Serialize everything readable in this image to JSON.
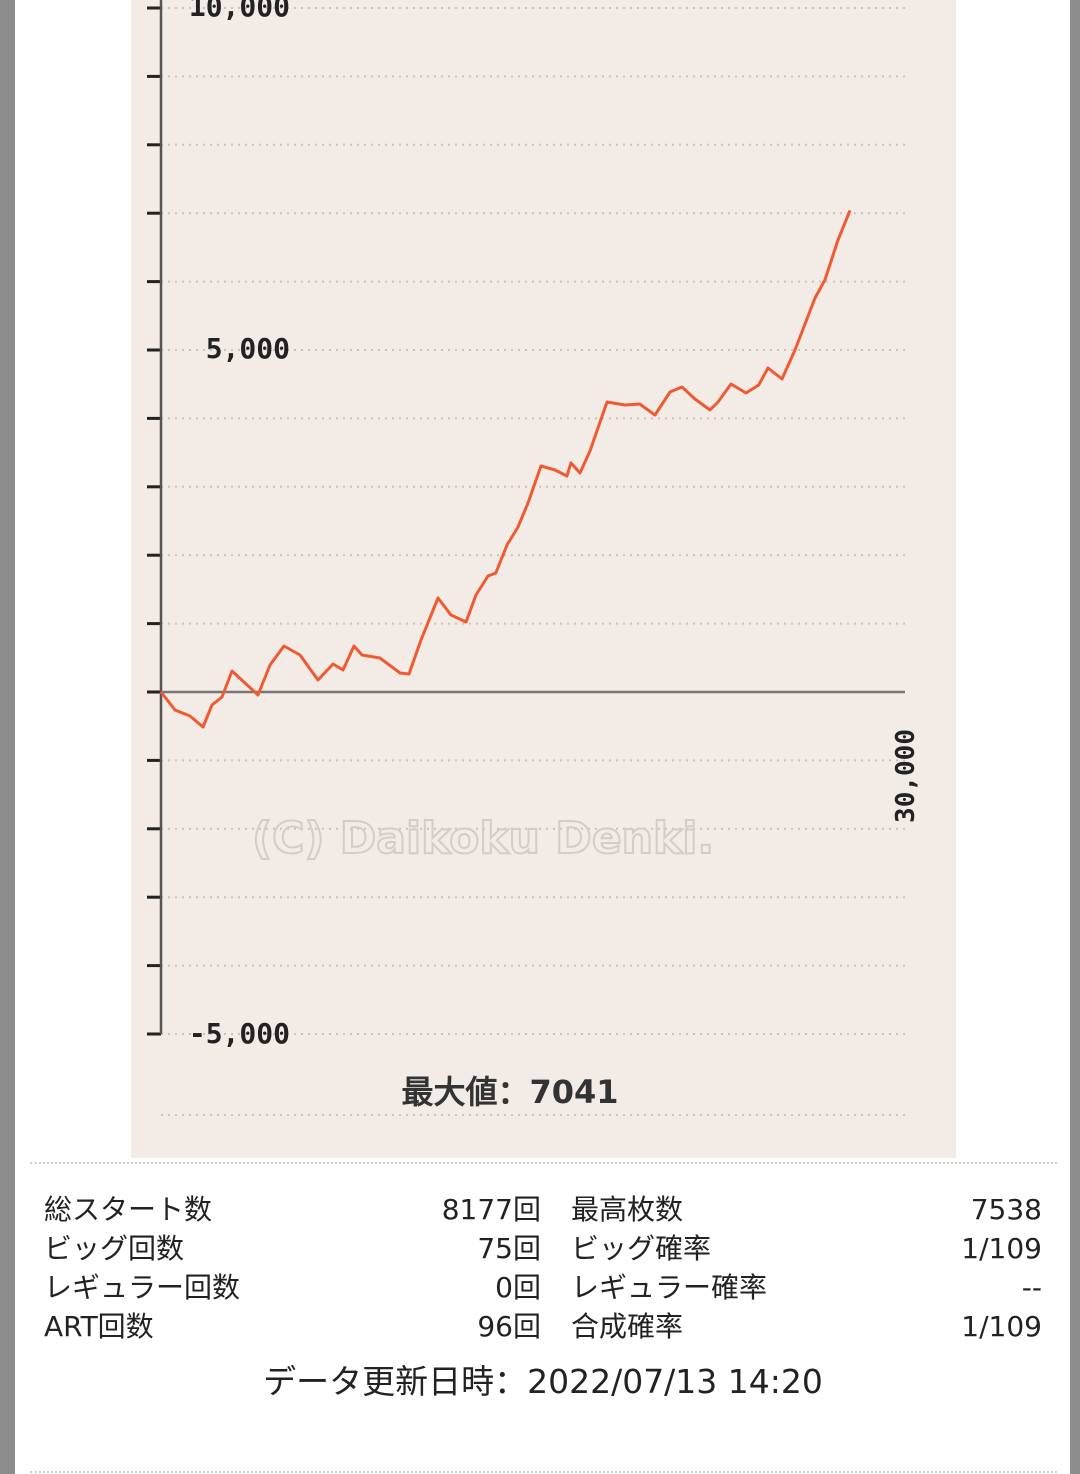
{
  "chart_data": {
    "type": "line",
    "title": "",
    "xlabel": "",
    "ylabel": "",
    "xlim": [
      0,
      30000
    ],
    "ylim": [
      -5000,
      10000
    ],
    "grid": true,
    "y_tick_labels": [
      "10,000",
      "5,000",
      "-5,000"
    ],
    "x_tick_labels": [
      "30,000"
    ],
    "y_tick_step": 1000,
    "line_color": "#f05a32",
    "watermark": "(C) Daikoku Denki.",
    "annotation": {
      "label": "最大値：7041",
      "value": 7041
    },
    "series": [
      {
        "x": [
          0,
          565,
          1169,
          1694,
          2056,
          2460,
          2863,
          3387,
          3911,
          4395,
          4960,
          5605,
          6331,
          6935,
          7339,
          7782,
          8105,
          8831,
          9637,
          10000,
          10484,
          11169,
          11694,
          12298,
          12702,
          13185,
          13500,
          13952,
          14395,
          14798,
          15323,
          15887,
          16371,
          16530,
          16895,
          17298,
          17984,
          18710,
          19300,
          19919,
          20524,
          21008,
          21532,
          22137,
          22460,
          22984,
          23589,
          24100,
          24476,
          25040,
          25565,
          26371,
          26770,
          27298,
          27782
        ],
        "y": [
          0,
          -263,
          -351,
          -512,
          -190,
          -73,
          307,
          132,
          -44,
          395,
          672,
          541,
          175,
          409,
          322,
          672,
          541,
          497,
          278,
          263,
          760,
          1374,
          1126,
          1023,
          1418,
          1696,
          1740,
          2149,
          2412,
          2763,
          3304,
          3246,
          3158,
          3350,
          3202,
          3523,
          4240,
          4196,
          4210,
          4050,
          4386,
          4459,
          4284,
          4123,
          4240,
          4503,
          4371,
          4488,
          4737,
          4576,
          5000,
          5760,
          6023,
          6608,
          7041
        ]
      }
    ]
  },
  "stats": [
    {
      "label1": "総スタート数",
      "value1": "8177回",
      "label2": "最高枚数",
      "value2": "7538"
    },
    {
      "label1": "ビッグ回数",
      "value1": "75回",
      "label2": "ビッグ確率",
      "value2": "1/109"
    },
    {
      "label1": "レギュラー回数",
      "value1": "0回",
      "label2": "レギュラー確率",
      "value2": "--"
    },
    {
      "label1": "ART回数",
      "value1": "96回",
      "label2": "合成確率",
      "value2": "1/109"
    }
  ],
  "updated": "データ更新日時：2022/07/13 14:20"
}
